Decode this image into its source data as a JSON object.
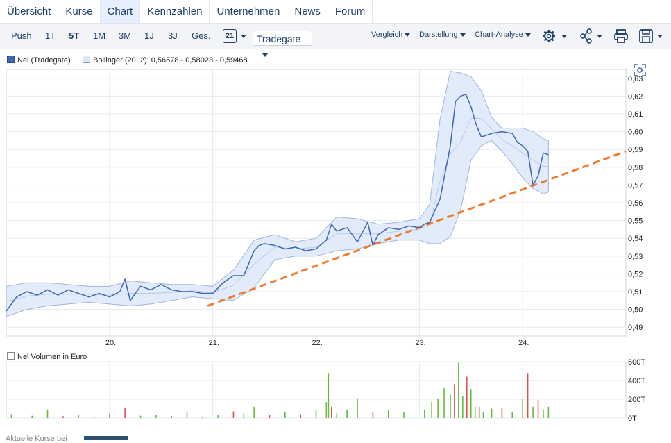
{
  "nav": {
    "tabs": [
      "Übersicht",
      "Kurse",
      "Chart",
      "Kennzahlen",
      "Unternehmen",
      "News",
      "Forum"
    ],
    "active": "Chart"
  },
  "toolbar": {
    "periods": [
      "Push",
      "1T",
      "5T",
      "1M",
      "3M",
      "1J",
      "3J",
      "Ges."
    ],
    "active_period": "5T",
    "calendar_label": "21",
    "exchange": "Tradegate",
    "vergleich": "Vergleich",
    "darstellung": "Darstellung",
    "analyse": "Chart-Analyse"
  },
  "colors": {
    "price_line": "#3d65b5",
    "band_fill": "#dde7f8",
    "trend_line": "#ee7b30",
    "vol_up": "#5fbf3b",
    "vol_down": "#d9534f",
    "accent": "#1f3f6b"
  },
  "chart_data": [
    {
      "type": "line",
      "legend": [
        "Nel (Tradegate)",
        "Bollinger (20, 2): 0,56578 - 0,58023 - 0,59468"
      ],
      "x_tick_labels": [
        "20.",
        "21.",
        "22.",
        "23.",
        "24."
      ],
      "y_tick_labels": [
        "0,49",
        "0,50",
        "0,51",
        "0,52",
        "0,53",
        "0,54",
        "0,55",
        "0,56",
        "0,57",
        "0,58",
        "0,59",
        "0,60",
        "0,61",
        "0,62",
        "0,63"
      ],
      "ylim": [
        0.485,
        0.635
      ],
      "xlim": [
        19.0,
        25.0
      ],
      "series": [
        {
          "name": "Nel (Tradegate)",
          "x": [
            19.0,
            19.1,
            19.2,
            19.3,
            19.4,
            19.5,
            19.6,
            19.7,
            19.8,
            19.9,
            20.0,
            20.1,
            20.15,
            20.2,
            20.3,
            20.4,
            20.5,
            20.6,
            20.7,
            20.8,
            20.9,
            21.0,
            21.1,
            21.2,
            21.3,
            21.4,
            21.45,
            21.5,
            21.6,
            21.7,
            21.8,
            21.9,
            22.0,
            22.1,
            22.15,
            22.2,
            22.3,
            22.4,
            22.5,
            22.55,
            22.6,
            22.7,
            22.8,
            22.9,
            23.0,
            23.05,
            23.1,
            23.2,
            23.3,
            23.35,
            23.4,
            23.45,
            23.5,
            23.55,
            23.6,
            23.7,
            23.8,
            23.9,
            23.95,
            24.0,
            24.05,
            24.1,
            24.15,
            24.2,
            24.25
          ],
          "values": [
            0.499,
            0.507,
            0.51,
            0.508,
            0.511,
            0.508,
            0.511,
            0.509,
            0.507,
            0.509,
            0.507,
            0.51,
            0.517,
            0.505,
            0.513,
            0.511,
            0.514,
            0.511,
            0.51,
            0.51,
            0.509,
            0.509,
            0.515,
            0.519,
            0.519,
            0.533,
            0.536,
            0.537,
            0.536,
            0.534,
            0.535,
            0.533,
            0.534,
            0.539,
            0.548,
            0.544,
            0.546,
            0.538,
            0.549,
            0.536,
            0.542,
            0.546,
            0.545,
            0.547,
            0.546,
            0.548,
            0.549,
            0.562,
            0.592,
            0.617,
            0.62,
            0.621,
            0.614,
            0.604,
            0.597,
            0.599,
            0.6,
            0.599,
            0.594,
            0.592,
            0.589,
            0.57,
            0.575,
            0.588,
            0.587
          ]
        },
        {
          "name": "Bollinger upper",
          "x": [
            19.0,
            19.2,
            19.4,
            19.6,
            19.8,
            20.0,
            20.2,
            20.4,
            20.6,
            20.8,
            21.0,
            21.2,
            21.4,
            21.6,
            21.8,
            22.0,
            22.2,
            22.4,
            22.6,
            22.8,
            23.0,
            23.1,
            23.2,
            23.3,
            23.4,
            23.5,
            23.6,
            23.7,
            23.8,
            23.9,
            24.0,
            24.1,
            24.2,
            24.25
          ],
          "values": [
            0.513,
            0.515,
            0.515,
            0.514,
            0.513,
            0.513,
            0.516,
            0.515,
            0.514,
            0.514,
            0.513,
            0.522,
            0.539,
            0.542,
            0.538,
            0.54,
            0.552,
            0.551,
            0.548,
            0.549,
            0.551,
            0.559,
            0.607,
            0.634,
            0.633,
            0.631,
            0.623,
            0.608,
            0.602,
            0.602,
            0.602,
            0.6,
            0.596,
            0.595
          ]
        },
        {
          "name": "Bollinger lower",
          "x": [
            19.0,
            19.2,
            19.4,
            19.6,
            19.8,
            20.0,
            20.2,
            20.4,
            20.6,
            20.8,
            21.0,
            21.2,
            21.4,
            21.6,
            21.8,
            22.0,
            22.2,
            22.4,
            22.6,
            22.8,
            23.0,
            23.1,
            23.2,
            23.3,
            23.4,
            23.5,
            23.6,
            23.7,
            23.8,
            23.9,
            24.0,
            24.1,
            24.2,
            24.25
          ],
          "values": [
            0.496,
            0.5,
            0.502,
            0.503,
            0.504,
            0.503,
            0.502,
            0.503,
            0.505,
            0.507,
            0.506,
            0.505,
            0.512,
            0.528,
            0.53,
            0.53,
            0.533,
            0.534,
            0.537,
            0.539,
            0.539,
            0.537,
            0.537,
            0.541,
            0.556,
            0.584,
            0.592,
            0.595,
            0.589,
            0.582,
            0.574,
            0.568,
            0.565,
            0.566
          ]
        },
        {
          "name": "Trendline",
          "x": [
            20.95,
            25.0
          ],
          "values": [
            0.502,
            0.589
          ]
        }
      ]
    },
    {
      "type": "bar",
      "legend": "Nel Volumen in Euro",
      "y_tick_labels": [
        "0T",
        "200T",
        "400T",
        "600T"
      ],
      "ylim": [
        0,
        600
      ],
      "x": [
        19.05,
        19.25,
        19.4,
        19.55,
        19.7,
        19.85,
        20.0,
        20.15,
        20.3,
        20.45,
        20.6,
        20.75,
        20.9,
        21.05,
        21.2,
        21.3,
        21.4,
        21.55,
        21.7,
        21.85,
        22.0,
        22.1,
        22.12,
        22.15,
        22.2,
        22.3,
        22.4,
        22.55,
        22.7,
        22.85,
        23.05,
        23.12,
        23.18,
        23.24,
        23.3,
        23.34,
        23.38,
        23.42,
        23.46,
        23.5,
        23.54,
        23.58,
        23.62,
        23.7,
        23.8,
        23.9,
        24.0,
        24.05,
        24.1,
        24.15,
        24.2,
        24.25
      ],
      "values": [
        40,
        25,
        90,
        20,
        30,
        15,
        45,
        110,
        25,
        35,
        20,
        60,
        15,
        30,
        70,
        45,
        120,
        30,
        60,
        40,
        90,
        170,
        480,
        120,
        50,
        90,
        210,
        60,
        80,
        60,
        90,
        170,
        210,
        320,
        250,
        360,
        590,
        230,
        440,
        310,
        120,
        120,
        60,
        100,
        110,
        60,
        200,
        480,
        120,
        190,
        90,
        120
      ],
      "up": [
        true,
        true,
        true,
        false,
        true,
        true,
        true,
        false,
        true,
        true,
        false,
        true,
        true,
        true,
        false,
        true,
        true,
        false,
        true,
        false,
        true,
        true,
        true,
        false,
        true,
        true,
        true,
        false,
        true,
        true,
        true,
        true,
        true,
        true,
        true,
        false,
        true,
        true,
        false,
        true,
        true,
        false,
        true,
        true,
        false,
        true,
        true,
        false,
        true,
        false,
        true,
        true
      ]
    }
  ],
  "volume_label": "Nel Volumen in Euro",
  "bottom_text": "Aktuelle Kurse bei"
}
